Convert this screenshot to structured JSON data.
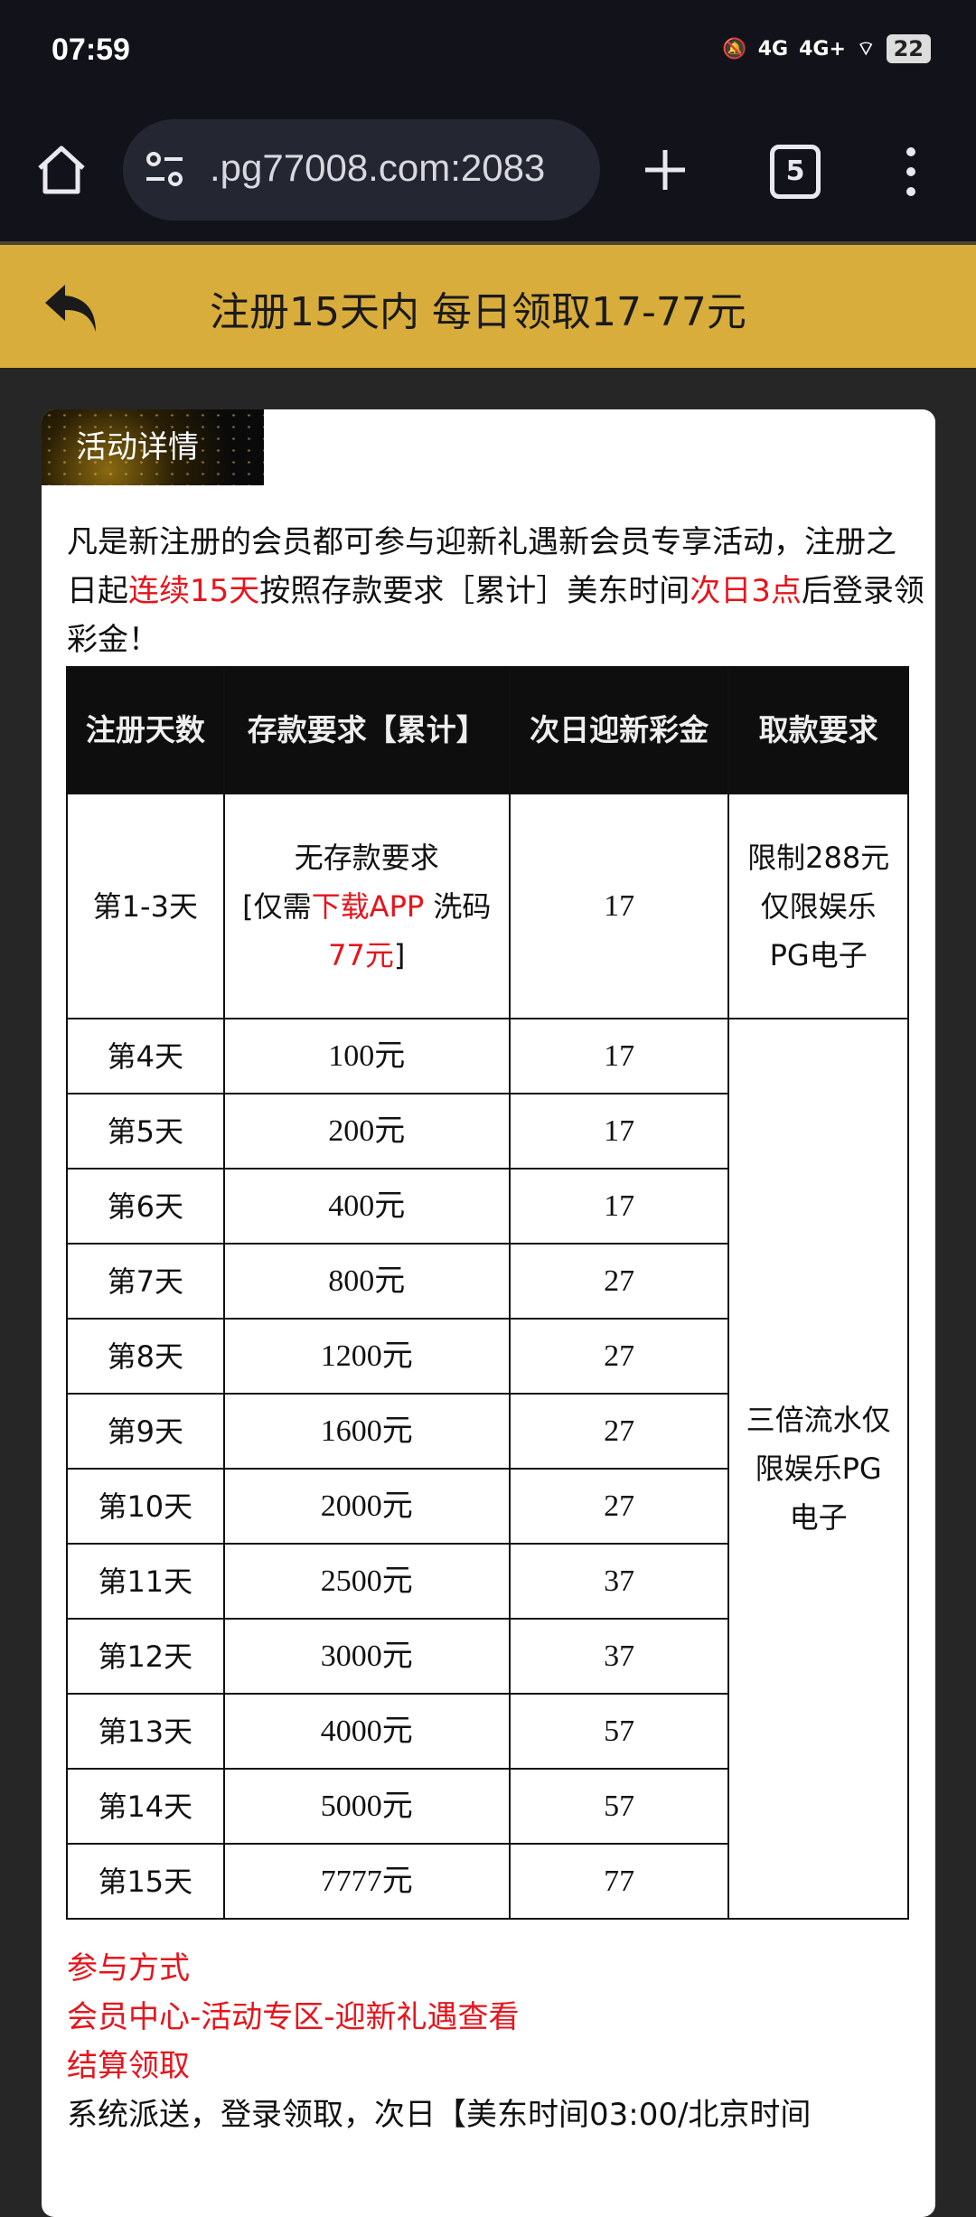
{
  "status_bar": {
    "time": "07:59",
    "network1": "4G",
    "network2": "4G+",
    "battery": "22"
  },
  "browser": {
    "url": ".pg77008.com:2083",
    "tab_count": "5"
  },
  "header": {
    "title": "注册15天内 每日领取17-77元"
  },
  "card": {
    "badge": "活动详情",
    "intro": {
      "p1": "凡是新注册的会员都可参与迎新礼遇新会员专享活动，注册之日起",
      "red1": "连续15天",
      "p2": "按照存款要求［累计］美东时间",
      "red2": "次日3点",
      "p3": "后登录领彩金！"
    },
    "table": {
      "headers": [
        "注册天数",
        "存款要求【累计】",
        "次日迎新彩金",
        "取款要求"
      ],
      "first_row": {
        "day": "第1-3天",
        "deposit_line1": "无存款要求",
        "deposit_pre": "[仅需",
        "deposit_red1": "下载APP",
        "deposit_mid": "洗码",
        "deposit_red2": "77元",
        "deposit_post": "]",
        "bonus": "17",
        "withdraw": "限制288元仅限娱乐PG电子"
      },
      "rows": [
        {
          "day": "第4天",
          "deposit": "100元",
          "bonus": "17"
        },
        {
          "day": "第5天",
          "deposit": "200元",
          "bonus": "17"
        },
        {
          "day": "第6天",
          "deposit": "400元",
          "bonus": "17"
        },
        {
          "day": "第7天",
          "deposit": "800元",
          "bonus": "27"
        },
        {
          "day": "第8天",
          "deposit": "1200元",
          "bonus": "27"
        },
        {
          "day": "第9天",
          "deposit": "1600元",
          "bonus": "27"
        },
        {
          "day": "第10天",
          "deposit": "2000元",
          "bonus": "27"
        },
        {
          "day": "第11天",
          "deposit": "2500元",
          "bonus": "37"
        },
        {
          "day": "第12天",
          "deposit": "3000元",
          "bonus": "37"
        },
        {
          "day": "第13天",
          "deposit": "4000元",
          "bonus": "57"
        },
        {
          "day": "第14天",
          "deposit": "5000元",
          "bonus": "57"
        },
        {
          "day": "第15天",
          "deposit": "7777元",
          "bonus": "77"
        }
      ],
      "withdraw_merged": "三倍流水仅限娱乐PG电子"
    },
    "notes": {
      "how_title": "参与方式",
      "how_path": "会员中心-活动专区-迎新礼遇查看",
      "settle_title": "结算领取",
      "settle_text": "系统派送，登录领取，次日【美东时间03:00/北京时间"
    }
  }
}
